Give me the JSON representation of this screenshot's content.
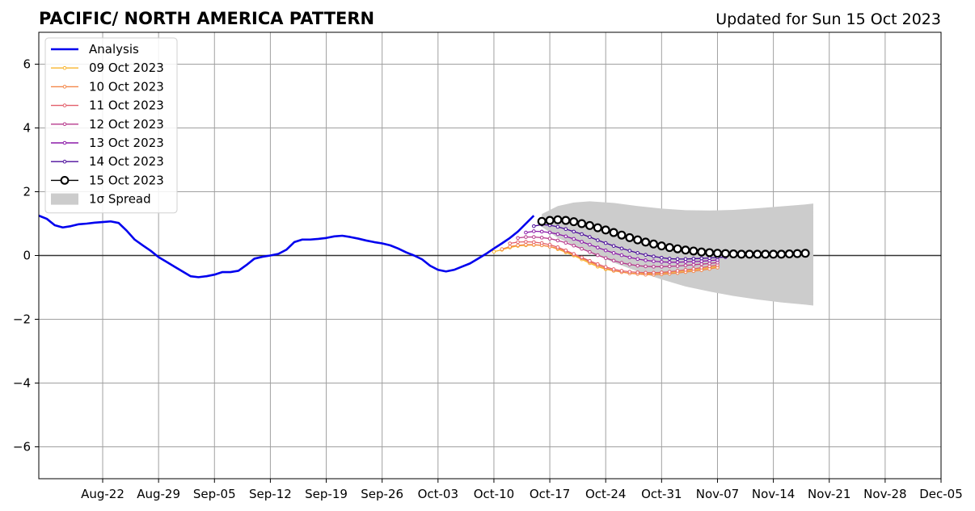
{
  "chart_data": {
    "type": "line",
    "title": "PACIFIC/ NORTH AMERICA PATTERN",
    "subtitle": "Updated for Sun 15 Oct 2023",
    "xlabel": "",
    "ylabel": "",
    "xlim": [
      "2023-08-14",
      "2023-12-05"
    ],
    "ylim": [
      -7,
      7
    ],
    "x_ticks": [
      "2023-08-22",
      "2023-08-29",
      "2023-09-05",
      "2023-09-12",
      "2023-09-19",
      "2023-09-26",
      "2023-10-03",
      "2023-10-10",
      "2023-10-17",
      "2023-10-24",
      "2023-10-31",
      "2023-11-07",
      "2023-11-14",
      "2023-11-21",
      "2023-11-28",
      "2023-12-05"
    ],
    "x_tick_labels": [
      "Aug-22",
      "Aug-29",
      "Sep-05",
      "Sep-12",
      "Sep-19",
      "Sep-26",
      "Oct-03",
      "Oct-10",
      "Oct-17",
      "Oct-24",
      "Oct-31",
      "Nov-07",
      "Nov-14",
      "Nov-21",
      "Nov-28",
      "Dec-05"
    ],
    "y_ticks": [
      -6,
      -4,
      -2,
      0,
      2,
      4,
      6
    ],
    "y_tick_labels": [
      "−6",
      "−4",
      "−2",
      "0",
      "2",
      "4",
      "6"
    ],
    "grid": true,
    "legend_position": "top-left",
    "analysis": {
      "name": "Analysis",
      "color": "#0000ee",
      "points": [
        [
          "2023-08-14",
          1.25
        ],
        [
          "2023-08-15",
          1.15
        ],
        [
          "2023-08-16",
          0.95
        ],
        [
          "2023-08-17",
          0.88
        ],
        [
          "2023-08-18",
          0.92
        ],
        [
          "2023-08-19",
          0.98
        ],
        [
          "2023-08-20",
          1.0
        ],
        [
          "2023-08-21",
          1.03
        ],
        [
          "2023-08-22",
          1.05
        ],
        [
          "2023-08-23",
          1.07
        ],
        [
          "2023-08-24",
          1.02
        ],
        [
          "2023-08-25",
          0.78
        ],
        [
          "2023-08-26",
          0.5
        ],
        [
          "2023-08-27",
          0.32
        ],
        [
          "2023-08-28",
          0.15
        ],
        [
          "2023-08-29",
          -0.05
        ],
        [
          "2023-08-30",
          -0.2
        ],
        [
          "2023-08-31",
          -0.35
        ],
        [
          "2023-09-01",
          -0.5
        ],
        [
          "2023-09-02",
          -0.65
        ],
        [
          "2023-09-03",
          -0.68
        ],
        [
          "2023-09-04",
          -0.65
        ],
        [
          "2023-09-05",
          -0.6
        ],
        [
          "2023-09-06",
          -0.52
        ],
        [
          "2023-09-07",
          -0.52
        ],
        [
          "2023-09-08",
          -0.48
        ],
        [
          "2023-09-09",
          -0.3
        ],
        [
          "2023-09-10",
          -0.1
        ],
        [
          "2023-09-11",
          -0.04
        ],
        [
          "2023-09-12",
          0.0
        ],
        [
          "2023-09-13",
          0.05
        ],
        [
          "2023-09-14",
          0.18
        ],
        [
          "2023-09-15",
          0.42
        ],
        [
          "2023-09-16",
          0.5
        ],
        [
          "2023-09-17",
          0.5
        ],
        [
          "2023-09-18",
          0.52
        ],
        [
          "2023-09-19",
          0.55
        ],
        [
          "2023-09-20",
          0.6
        ],
        [
          "2023-09-21",
          0.62
        ],
        [
          "2023-09-22",
          0.58
        ],
        [
          "2023-09-23",
          0.53
        ],
        [
          "2023-09-24",
          0.47
        ],
        [
          "2023-09-25",
          0.42
        ],
        [
          "2023-09-26",
          0.38
        ],
        [
          "2023-09-27",
          0.32
        ],
        [
          "2023-09-28",
          0.22
        ],
        [
          "2023-09-29",
          0.1
        ],
        [
          "2023-09-30",
          0.0
        ],
        [
          "2023-10-01",
          -0.12
        ],
        [
          "2023-10-02",
          -0.32
        ],
        [
          "2023-10-03",
          -0.45
        ],
        [
          "2023-10-04",
          -0.5
        ],
        [
          "2023-10-05",
          -0.45
        ],
        [
          "2023-10-06",
          -0.35
        ],
        [
          "2023-10-07",
          -0.25
        ],
        [
          "2023-10-08",
          -0.1
        ],
        [
          "2023-10-09",
          0.05
        ],
        [
          "2023-10-10",
          0.22
        ],
        [
          "2023-10-11",
          0.38
        ],
        [
          "2023-10-12",
          0.55
        ],
        [
          "2023-10-13",
          0.75
        ],
        [
          "2023-10-14",
          1.0
        ],
        [
          "2023-10-15",
          1.25
        ]
      ]
    },
    "series": [
      {
        "name": "09 Oct 2023",
        "color": "#f8b42e",
        "start": "2023-10-10",
        "values": [
          0.12,
          0.18,
          0.25,
          0.3,
          0.32,
          0.33,
          0.32,
          0.28,
          0.2,
          0.1,
          0.0,
          -0.12,
          -0.24,
          -0.35,
          -0.43,
          -0.48,
          -0.52,
          -0.55,
          -0.57,
          -0.57,
          -0.56,
          -0.55,
          -0.53,
          -0.51,
          -0.48,
          -0.45,
          -0.42,
          -0.38,
          -0.35
        ]
      },
      {
        "name": "10 Oct 2023",
        "color": "#f3874a",
        "start": "2023-10-11",
        "values": [
          0.2,
          0.28,
          0.32,
          0.34,
          0.34,
          0.32,
          0.28,
          0.22,
          0.13,
          0.03,
          -0.08,
          -0.2,
          -0.31,
          -0.4,
          -0.47,
          -0.52,
          -0.56,
          -0.58,
          -0.6,
          -0.6,
          -0.59,
          -0.57,
          -0.55,
          -0.52,
          -0.49,
          -0.46,
          -0.42,
          -0.38
        ]
      },
      {
        "name": "11 Oct 2023",
        "color": "#e35f6b",
        "start": "2023-10-12",
        "values": [
          0.38,
          0.42,
          0.43,
          0.42,
          0.39,
          0.34,
          0.26,
          0.16,
          0.05,
          -0.06,
          -0.17,
          -0.27,
          -0.36,
          -0.43,
          -0.48,
          -0.51,
          -0.53,
          -0.54,
          -0.54,
          -0.53,
          -0.51,
          -0.48,
          -0.45,
          -0.42,
          -0.38,
          -0.34,
          -0.3
        ]
      },
      {
        "name": "12 Oct 2023",
        "color": "#b7398c",
        "start": "2023-10-13",
        "values": [
          0.55,
          0.58,
          0.58,
          0.56,
          0.53,
          0.47,
          0.4,
          0.31,
          0.21,
          0.11,
          0.01,
          -0.08,
          -0.16,
          -0.23,
          -0.28,
          -0.32,
          -0.34,
          -0.35,
          -0.35,
          -0.34,
          -0.33,
          -0.31,
          -0.29,
          -0.27,
          -0.25,
          -0.22
        ]
      },
      {
        "name": "13 Oct 2023",
        "color": "#8b1aa8",
        "start": "2023-10-14",
        "values": [
          0.72,
          0.76,
          0.75,
          0.72,
          0.67,
          0.6,
          0.52,
          0.43,
          0.34,
          0.25,
          0.16,
          0.08,
          0.01,
          -0.06,
          -0.11,
          -0.15,
          -0.18,
          -0.2,
          -0.21,
          -0.21,
          -0.2,
          -0.19,
          -0.18,
          -0.16,
          -0.14
        ]
      },
      {
        "name": "14 Oct 2023",
        "color": "#4b0c9b",
        "start": "2023-10-15",
        "values": [
          0.92,
          0.97,
          0.95,
          0.9,
          0.83,
          0.75,
          0.67,
          0.58,
          0.48,
          0.39,
          0.3,
          0.22,
          0.15,
          0.08,
          0.02,
          -0.03,
          -0.07,
          -0.1,
          -0.11,
          -0.11,
          -0.1,
          -0.09,
          -0.08,
          -0.06,
          -0.05
        ]
      },
      {
        "name": "15 Oct 2023",
        "color": "#000000",
        "start": "2023-10-16",
        "values": [
          1.07,
          1.1,
          1.12,
          1.1,
          1.06,
          1.0,
          0.94,
          0.87,
          0.8,
          0.72,
          0.64,
          0.56,
          0.49,
          0.42,
          0.36,
          0.3,
          0.25,
          0.21,
          0.17,
          0.14,
          0.11,
          0.09,
          0.07,
          0.06,
          0.05,
          0.04,
          0.04,
          0.04,
          0.04,
          0.04,
          0.04,
          0.05,
          0.06,
          0.07
        ]
      }
    ],
    "spread": {
      "name": "1σ Spread",
      "color": "#cccccc",
      "points": [
        [
          "2023-10-16",
          1.3,
          0.9
        ],
        [
          "2023-10-18",
          1.55,
          0.55
        ],
        [
          "2023-10-20",
          1.66,
          0.33
        ],
        [
          "2023-10-22",
          1.7,
          0.12
        ],
        [
          "2023-10-25",
          1.65,
          -0.22
        ],
        [
          "2023-10-28",
          1.55,
          -0.5
        ],
        [
          "2023-10-31",
          1.47,
          -0.75
        ],
        [
          "2023-11-03",
          1.42,
          -0.97
        ],
        [
          "2023-11-06",
          1.41,
          -1.13
        ],
        [
          "2023-11-09",
          1.43,
          -1.27
        ],
        [
          "2023-11-12",
          1.48,
          -1.38
        ],
        [
          "2023-11-15",
          1.54,
          -1.47
        ],
        [
          "2023-11-18",
          1.6,
          -1.54
        ],
        [
          "2023-11-19",
          1.63,
          -1.57
        ]
      ]
    }
  }
}
